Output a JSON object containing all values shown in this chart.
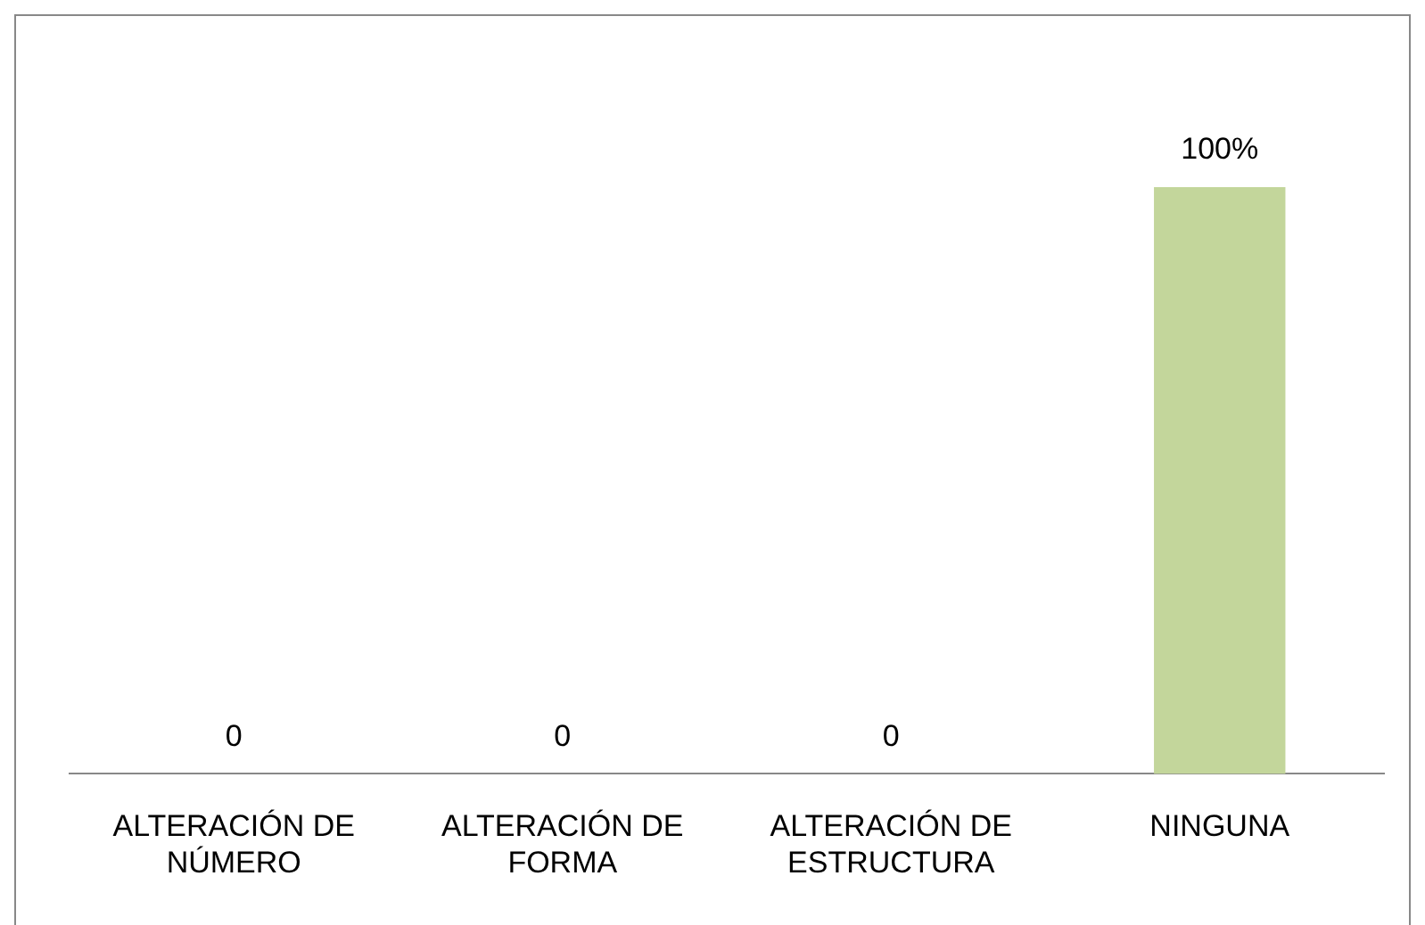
{
  "chart_data": {
    "type": "bar",
    "categories": [
      "ALTERACIÓN DE NÚMERO",
      "ALTERACIÓN DE FORMA",
      "ALTERACIÓN DE ESTRUCTURA",
      "NINGUNA"
    ],
    "values": [
      0,
      0,
      0,
      100
    ],
    "color": "#c3d69b",
    "value_labels": [
      "0",
      "0",
      "0",
      "100%"
    ],
    "grid": false,
    "legend": false
  }
}
